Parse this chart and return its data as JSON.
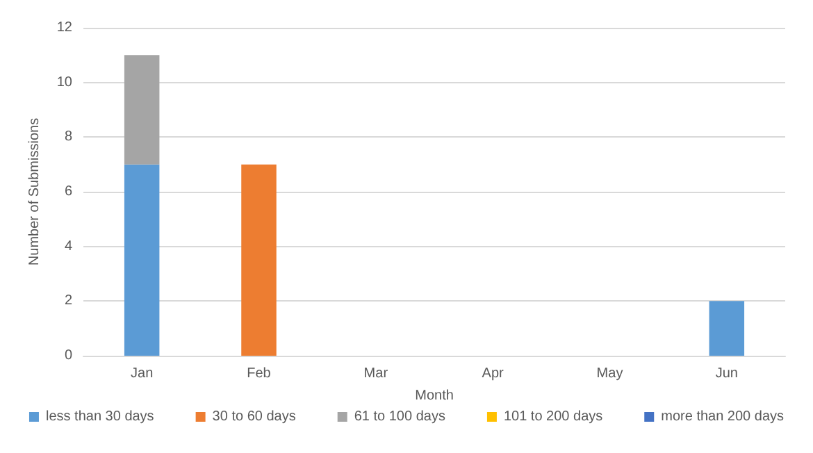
{
  "chart_data": {
    "type": "bar",
    "stacked": true,
    "xlabel": "Month",
    "ylabel": "Number of Submissions",
    "categories": [
      "Jan",
      "Feb",
      "Mar",
      "Apr",
      "May",
      "Jun"
    ],
    "series": [
      {
        "name": "less than 30 days",
        "color": "#5b9bd5",
        "values": [
          7,
          0,
          0,
          0,
          0,
          2
        ]
      },
      {
        "name": "30 to 60 days",
        "color": "#ed7d31",
        "values": [
          0,
          7,
          0,
          0,
          0,
          0
        ]
      },
      {
        "name": "61 to 100 days",
        "color": "#a5a5a5",
        "values": [
          4,
          0,
          0,
          0,
          0,
          0
        ]
      },
      {
        "name": "101 to 200 days",
        "color": "#ffc000",
        "values": [
          0,
          0,
          0,
          0,
          0,
          0
        ]
      },
      {
        "name": "more than 200 days",
        "color": "#4472c4",
        "values": [
          0,
          0,
          0,
          0,
          0,
          0
        ]
      }
    ],
    "ylim": [
      0,
      12
    ],
    "yticks": [
      0,
      2,
      4,
      6,
      8,
      10,
      12
    ],
    "grid": "y",
    "legend": "bottom"
  }
}
